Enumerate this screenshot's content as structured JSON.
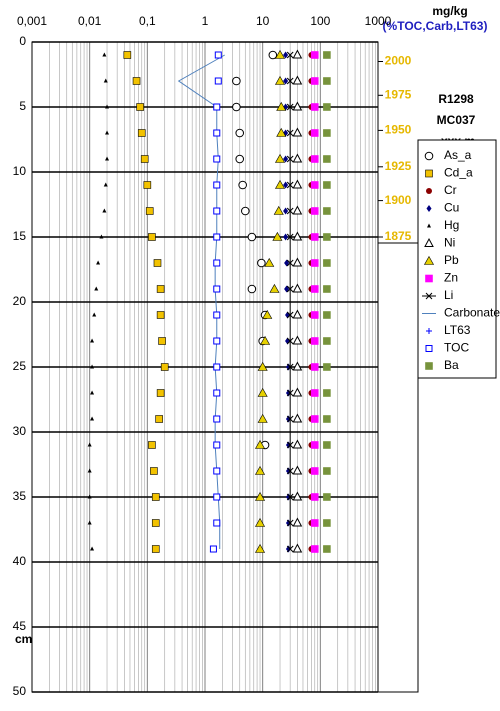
{
  "chart_data": {
    "type": "scatter",
    "unit_label": "mg/kg",
    "unit_label_2": "(%TOC,Carb,LT63)",
    "ylabel": "cm",
    "core_labels": [
      "R1298",
      "MC037",
      "-xxx m"
    ],
    "xscale": "log",
    "xlim": [
      0.001,
      1000
    ],
    "xticks": [
      {
        "value": 0.001,
        "label": "0,001"
      },
      {
        "value": 0.01,
        "label": "0,01"
      },
      {
        "value": 0.1,
        "label": "0,1"
      },
      1,
      10,
      100,
      1000
    ],
    "ylim": [
      0,
      50
    ],
    "yticks": [
      0,
      5,
      10,
      15,
      20,
      25,
      30,
      35,
      40,
      45,
      50
    ],
    "age_ticks": [
      {
        "year": 2000,
        "depth": 1.5
      },
      {
        "year": 1975,
        "depth": 4.1
      },
      {
        "year": 1950,
        "depth": 6.8
      },
      {
        "year": 1925,
        "depth": 9.6
      },
      {
        "year": 1900,
        "depth": 12.2
      },
      {
        "year": 1875,
        "depth": 15
      }
    ],
    "age_color": "#e6b800",
    "grid": true,
    "depth": [
      1,
      3,
      5,
      7,
      9,
      11,
      13,
      15,
      17,
      19,
      21,
      23,
      25,
      27,
      29,
      31,
      33,
      35,
      37,
      39
    ],
    "series": [
      {
        "name": "As_a",
        "marker": "circle-open",
        "color": "#000000",
        "values": [
          15,
          3.5,
          3.5,
          4,
          4,
          4.5,
          5,
          6.5,
          9.5,
          6.5,
          11,
          10,
          null,
          null,
          null,
          11,
          null,
          null,
          null,
          null
        ]
      },
      {
        "name": "Cd_a",
        "marker": "square",
        "color": "#f2c200",
        "values": [
          0.045,
          0.065,
          0.075,
          0.08,
          0.09,
          0.1,
          0.11,
          0.12,
          0.15,
          0.17,
          0.17,
          0.18,
          0.2,
          0.17,
          0.16,
          0.12,
          0.13,
          0.14,
          0.14,
          0.14
        ]
      },
      {
        "name": "Cr",
        "marker": "dot",
        "color": "#8b0000",
        "values": [
          70,
          70,
          70,
          70,
          70,
          70,
          70,
          70,
          70,
          70,
          70,
          70,
          70,
          70,
          70,
          70,
          70,
          70,
          70,
          70
        ]
      },
      {
        "name": "Cu",
        "marker": "diamond",
        "color": "#000080",
        "values": [
          25,
          25,
          25,
          25,
          25,
          25,
          25,
          25,
          26,
          26,
          27,
          27,
          28,
          28,
          28,
          28,
          28,
          28,
          28,
          28
        ]
      },
      {
        "name": "Hg",
        "marker": "triangle-small",
        "color": "#000000",
        "values": [
          0.018,
          0.019,
          0.02,
          0.02,
          0.02,
          0.019,
          0.018,
          0.016,
          0.014,
          0.013,
          0.012,
          0.011,
          0.011,
          0.011,
          0.011,
          0.01,
          0.01,
          0.01,
          0.01,
          0.011
        ]
      },
      {
        "name": "Ni",
        "marker": "triangle-open",
        "color": "#000000",
        "values": [
          40,
          40,
          40,
          40,
          40,
          40,
          40,
          40,
          40,
          40,
          40,
          40,
          40,
          40,
          40,
          40,
          40,
          40,
          40,
          40
        ]
      },
      {
        "name": "Pb",
        "marker": "triangle",
        "color": "#e6d000",
        "values": [
          20,
          20,
          21,
          21,
          20,
          20,
          19,
          18,
          13,
          16,
          12,
          11,
          10,
          10,
          10,
          9,
          9,
          9,
          9,
          9
        ]
      },
      {
        "name": "Zn",
        "marker": "square",
        "color": "#ff00ff",
        "values": [
          80,
          80,
          80,
          80,
          80,
          80,
          80,
          80,
          80,
          80,
          80,
          80,
          80,
          80,
          80,
          80,
          80,
          80,
          80,
          80
        ]
      },
      {
        "name": "Li",
        "marker": "x-line",
        "color": "#000000",
        "values": [
          30,
          30,
          30,
          30,
          30,
          30,
          30,
          30,
          30,
          30,
          30,
          30,
          30,
          30,
          30,
          30,
          30,
          30,
          30,
          30
        ]
      },
      {
        "name": "Carbonate",
        "marker": "line",
        "color": "#4f81bd",
        "values": [
          2.2,
          0.35,
          1.6,
          1.6,
          1.7,
          1.6,
          1.6,
          1.6,
          1.5,
          1.5,
          1.6,
          1.6,
          1.5,
          1.6,
          1.5,
          1.5,
          1.6,
          1.7,
          1.8,
          1.8
        ]
      },
      {
        "name": "LT63",
        "marker": "plus",
        "color": "#0000ff",
        "values": [
          null,
          null,
          null,
          null,
          null,
          null,
          null,
          null,
          null,
          null,
          null,
          null,
          null,
          null,
          null,
          null,
          null,
          null,
          null,
          null
        ]
      },
      {
        "name": "TOC",
        "marker": "square-open",
        "color": "#0000ff",
        "values": [
          1.7,
          1.7,
          1.6,
          1.6,
          1.6,
          1.6,
          1.6,
          1.6,
          1.6,
          1.6,
          1.6,
          1.6,
          1.6,
          1.6,
          1.6,
          1.6,
          1.6,
          1.6,
          1.6,
          1.4
        ]
      },
      {
        "name": "Ba",
        "marker": "square",
        "color": "#77933c",
        "values": [
          130,
          130,
          130,
          130,
          130,
          130,
          130,
          130,
          130,
          130,
          130,
          130,
          130,
          130,
          130,
          130,
          130,
          130,
          130,
          130
        ]
      }
    ]
  }
}
